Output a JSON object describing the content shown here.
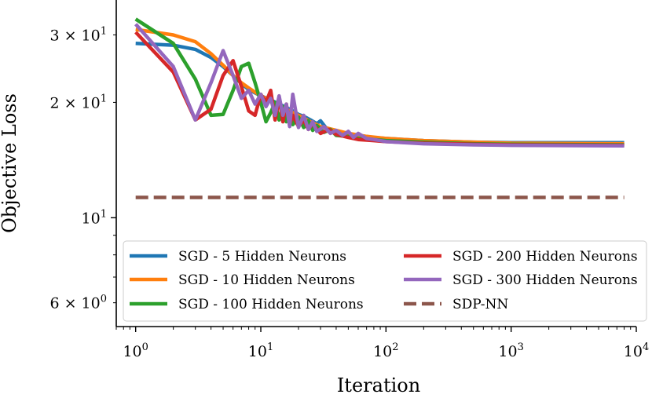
{
  "chart_data": {
    "type": "line",
    "title": "",
    "xlabel": "Iteration",
    "ylabel": "Objective Loss",
    "xscale": "log",
    "yscale": "log",
    "xlim": [
      0.7,
      10000
    ],
    "ylim": [
      5.2,
      37
    ],
    "grid": false,
    "legend_location": "lower center, two columns",
    "x_ticks": [
      {
        "value": 1,
        "label": "10^0"
      },
      {
        "value": 10,
        "label": "10^1"
      },
      {
        "value": 100,
        "label": "10^2"
      },
      {
        "value": 1000,
        "label": "10^3"
      },
      {
        "value": 10000,
        "label": "10^4"
      }
    ],
    "y_ticks": [
      {
        "value": 6,
        "label": "6 × 10^0"
      },
      {
        "value": 10,
        "label": "10^1"
      },
      {
        "value": 20,
        "label": "2 × 10^1"
      },
      {
        "value": 30,
        "label": "3 × 10^1"
      }
    ],
    "series": [
      {
        "name": "SGD - 5 Hidden Neurons",
        "color": "#1f77b4",
        "style": "solid",
        "points": [
          [
            1,
            28.5
          ],
          [
            2,
            28.2
          ],
          [
            3,
            27.5
          ],
          [
            4,
            26.2
          ],
          [
            5,
            24.8
          ],
          [
            6,
            23.5
          ],
          [
            7,
            22.4
          ],
          [
            8,
            21.6
          ],
          [
            10,
            20.8
          ],
          [
            12,
            20.3
          ],
          [
            14,
            19.8
          ],
          [
            16,
            19.4
          ],
          [
            18,
            19.0
          ],
          [
            20,
            18.6
          ],
          [
            22,
            18.4
          ],
          [
            25,
            18.0
          ],
          [
            28,
            17.6
          ],
          [
            30,
            17.9
          ],
          [
            33,
            17.2
          ],
          [
            36,
            17.0
          ],
          [
            40,
            16.8
          ],
          [
            45,
            16.6
          ],
          [
            50,
            16.5
          ],
          [
            60,
            16.4
          ],
          [
            80,
            16.2
          ],
          [
            100,
            16.1
          ],
          [
            200,
            15.9
          ],
          [
            500,
            15.75
          ],
          [
            1000,
            15.7
          ],
          [
            8000,
            15.7
          ]
        ]
      },
      {
        "name": "SGD - 10 Hidden Neurons",
        "color": "#ff7f0e",
        "style": "solid",
        "points": [
          [
            1,
            31.0
          ],
          [
            2,
            30.0
          ],
          [
            3,
            28.8
          ],
          [
            4,
            26.8
          ],
          [
            5,
            25.0
          ],
          [
            6,
            23.5
          ],
          [
            7,
            22.5
          ],
          [
            8,
            21.8
          ],
          [
            10,
            20.8
          ],
          [
            12,
            20.2
          ],
          [
            14,
            19.6
          ],
          [
            16,
            19.2
          ],
          [
            18,
            18.8
          ],
          [
            20,
            18.5
          ],
          [
            25,
            17.8
          ],
          [
            30,
            17.3
          ],
          [
            40,
            16.9
          ],
          [
            50,
            16.6
          ],
          [
            70,
            16.3
          ],
          [
            100,
            16.1
          ],
          [
            200,
            15.9
          ],
          [
            500,
            15.75
          ],
          [
            1000,
            15.65
          ],
          [
            8000,
            15.6
          ]
        ]
      },
      {
        "name": "SGD - 100 Hidden Neurons",
        "color": "#2ca02c",
        "style": "solid",
        "points": [
          [
            1,
            33.0
          ],
          [
            2,
            28.5
          ],
          [
            3,
            23.0
          ],
          [
            4,
            18.5
          ],
          [
            5,
            18.6
          ],
          [
            6,
            21.5
          ],
          [
            7,
            24.8
          ],
          [
            8,
            25.3
          ],
          [
            9,
            22.5
          ],
          [
            10,
            20.0
          ],
          [
            11,
            17.8
          ],
          [
            12,
            18.8
          ],
          [
            13,
            20.0
          ],
          [
            14,
            18.0
          ],
          [
            15,
            19.5
          ],
          [
            16,
            17.8
          ],
          [
            17,
            18.8
          ],
          [
            18,
            17.5
          ],
          [
            20,
            18.3
          ],
          [
            22,
            17.2
          ],
          [
            24,
            17.9
          ],
          [
            26,
            16.9
          ],
          [
            28,
            17.4
          ],
          [
            32,
            16.7
          ],
          [
            36,
            17.0
          ],
          [
            40,
            16.4
          ],
          [
            50,
            16.3
          ],
          [
            60,
            16.1
          ],
          [
            80,
            16.0
          ],
          [
            100,
            15.9
          ],
          [
            200,
            15.75
          ],
          [
            500,
            15.6
          ],
          [
            1000,
            15.55
          ],
          [
            8000,
            15.5
          ]
        ]
      },
      {
        "name": "SGD - 200 Hidden Neurons",
        "color": "#d62728",
        "style": "solid",
        "points": [
          [
            1,
            30.5
          ],
          [
            2,
            24.0
          ],
          [
            3,
            18.0
          ],
          [
            4,
            19.2
          ],
          [
            5,
            23.5
          ],
          [
            6,
            25.7
          ],
          [
            7,
            22.0
          ],
          [
            8,
            19.0
          ],
          [
            9,
            18.5
          ],
          [
            10,
            21.0
          ],
          [
            11,
            20.0
          ],
          [
            12,
            21.5
          ],
          [
            13,
            18.0
          ],
          [
            14,
            20.5
          ],
          [
            15,
            17.8
          ],
          [
            16,
            19.8
          ],
          [
            17,
            17.5
          ],
          [
            18,
            18.5
          ],
          [
            20,
            17.3
          ],
          [
            22,
            18.0
          ],
          [
            24,
            17.0
          ],
          [
            26,
            17.6
          ],
          [
            30,
            16.6
          ],
          [
            35,
            17.0
          ],
          [
            40,
            16.5
          ],
          [
            50,
            16.2
          ],
          [
            60,
            16.0
          ],
          [
            80,
            15.9
          ],
          [
            100,
            15.8
          ],
          [
            200,
            15.65
          ],
          [
            500,
            15.55
          ],
          [
            1000,
            15.5
          ],
          [
            8000,
            15.45
          ]
        ]
      },
      {
        "name": "SGD - 300 Hidden Neurons",
        "color": "#9467bd",
        "style": "solid",
        "points": [
          [
            1,
            32.0
          ],
          [
            2,
            24.8
          ],
          [
            3,
            18.0
          ],
          [
            4,
            22.5
          ],
          [
            5,
            27.3
          ],
          [
            6,
            23.5
          ],
          [
            7,
            20.5
          ],
          [
            8,
            21.5
          ],
          [
            9,
            19.8
          ],
          [
            10,
            21.0
          ],
          [
            11,
            19.5
          ],
          [
            12,
            20.5
          ],
          [
            13,
            18.5
          ],
          [
            14,
            20.8
          ],
          [
            15,
            18.5
          ],
          [
            16,
            19.8
          ],
          [
            17,
            17.3
          ],
          [
            18,
            21.0
          ],
          [
            19,
            19.0
          ],
          [
            20,
            17.2
          ],
          [
            22,
            18.5
          ],
          [
            24,
            17.0
          ],
          [
            26,
            17.8
          ],
          [
            28,
            16.8
          ],
          [
            32,
            17.3
          ],
          [
            36,
            16.6
          ],
          [
            40,
            16.9
          ],
          [
            45,
            16.4
          ],
          [
            50,
            16.8
          ],
          [
            55,
            16.2
          ],
          [
            60,
            16.6
          ],
          [
            70,
            16.1
          ],
          [
            80,
            16.0
          ],
          [
            100,
            15.8
          ],
          [
            200,
            15.6
          ],
          [
            500,
            15.5
          ],
          [
            1000,
            15.45
          ],
          [
            8000,
            15.4
          ]
        ]
      },
      {
        "name": "SDP-NN",
        "color": "#8c564b",
        "style": "dashed",
        "points": [
          [
            1,
            11.3
          ],
          [
            8000,
            11.3
          ]
        ]
      }
    ]
  }
}
